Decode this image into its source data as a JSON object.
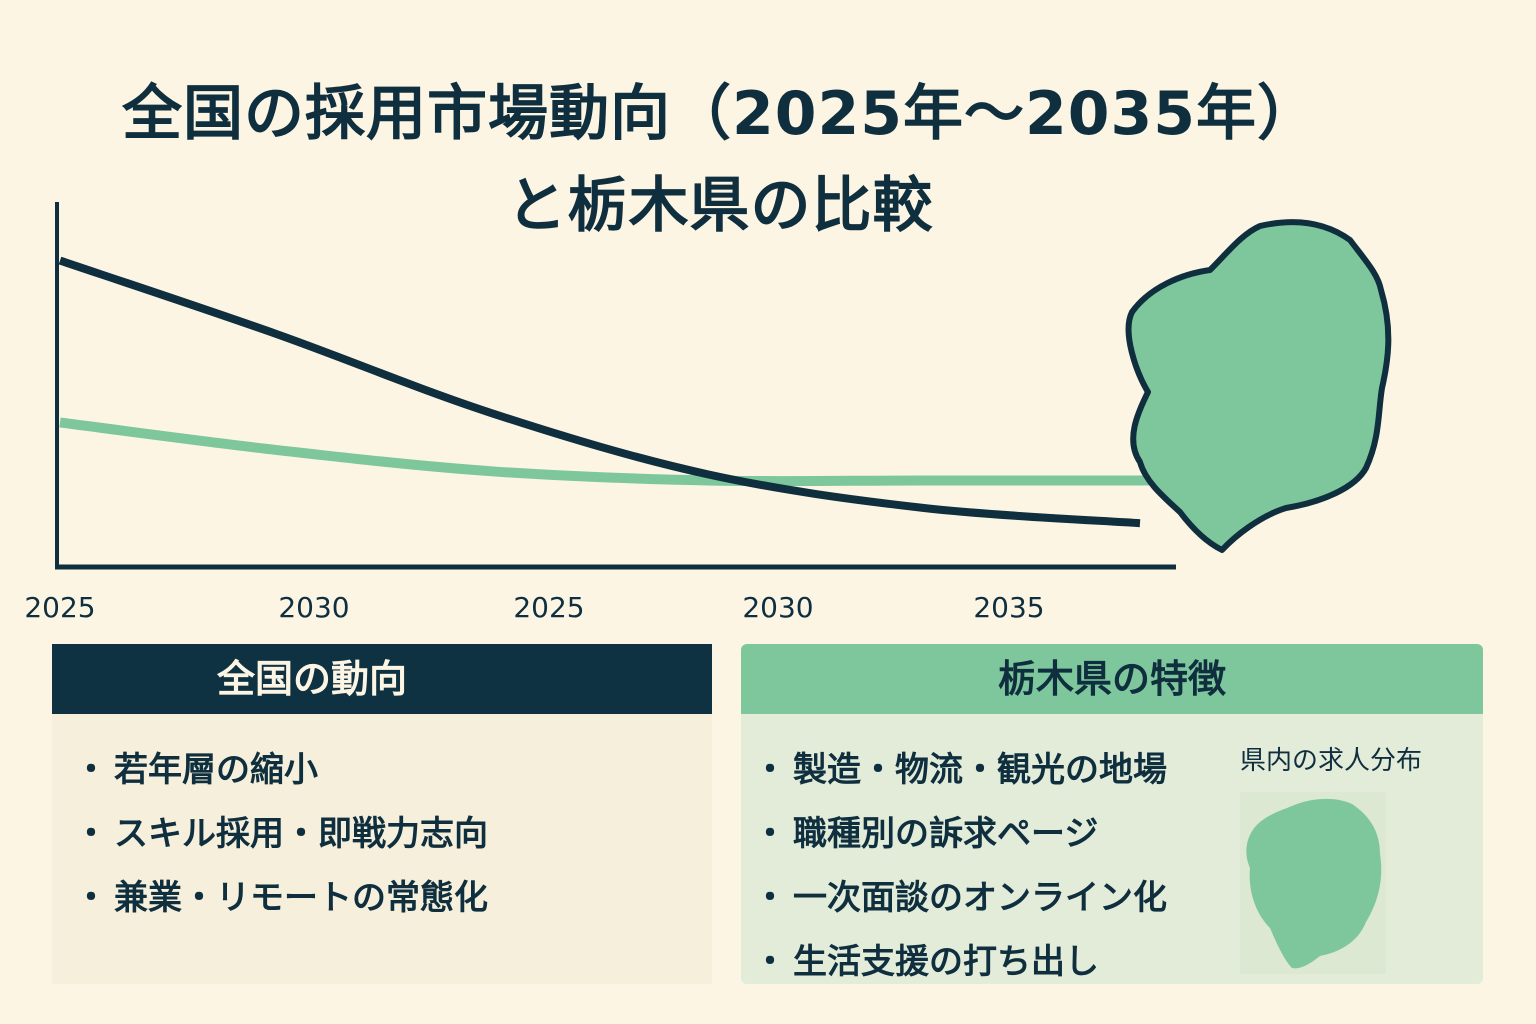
{
  "title": {
    "line1": "全国の採用市場動向（2025年〜2035年）",
    "line2": "と栃木県の比較"
  },
  "chart_data": {
    "type": "line",
    "x_tick_labels": [
      "2025",
      "2030",
      "2025",
      "2030",
      "2035"
    ],
    "yaxis_labels": "none",
    "series": [
      {
        "color": "#0f2f3f",
        "x": [
          0,
          1,
          2,
          3,
          4,
          5
        ],
        "y": [
          100,
          76,
          50,
          30,
          19,
          14
        ]
      },
      {
        "color": "#7ec79d",
        "x": [
          0,
          1,
          2,
          3,
          4,
          5
        ],
        "y": [
          47,
          38,
          31,
          28,
          28,
          28
        ]
      }
    ],
    "xlim": [
      0,
      5
    ],
    "ylim": [
      0,
      110
    ],
    "grid": false,
    "legend": "none"
  },
  "colors": {
    "background": "#fdf5e4",
    "navy": "#0f2f3f",
    "green": "#7ec79d",
    "panel_national_bg": "#f6efdb",
    "panel_tochigi_bg": "#e3ecd9"
  },
  "national_panel": {
    "header": "全国の動向",
    "points": [
      "若年層の縮小",
      "スキル採用・即戦力志向",
      "兼業・リモートの常態化"
    ]
  },
  "tochigi_panel": {
    "header": "栃木県の特徴",
    "points": [
      "製造・物流・観光の地場",
      "職種別の訴求ページ",
      "一次面談のオンライン化",
      "生活支援の打ち出し"
    ],
    "mini_caption": "県内の求人分布"
  },
  "icons": {
    "map": "tochigi-map-icon",
    "mini_map": "tochigi-mini-map-icon"
  }
}
